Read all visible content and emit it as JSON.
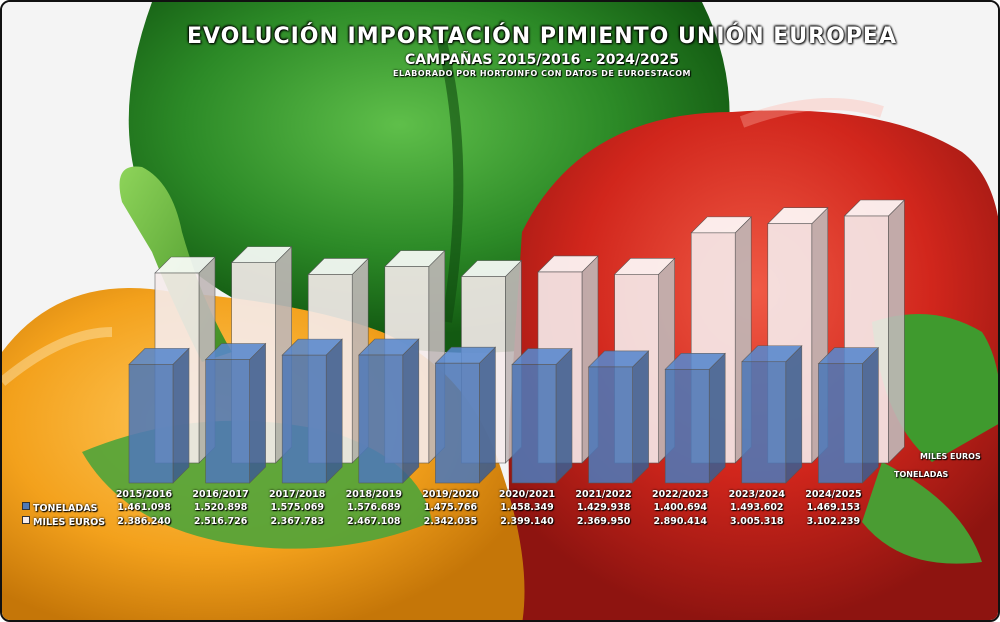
{
  "title": "EVOLUCIÓN IMPORTACIÓN PIMIENTO UNIÓN EUROPEA",
  "subtitle": "CAMPAÑAS 2015/2016 - 2024/2025",
  "source": "ELABORADO POR HORTOINFO CON DATOS DE EUROESTACOM",
  "colors": {
    "toneladas": "#4f79b8",
    "miles_euros": "#f6ecec"
  },
  "chart_data": {
    "type": "bar",
    "categories": [
      "2015/2016",
      "2016/2017",
      "2017/2018",
      "2018/2019",
      "2019/2020",
      "2020/2021",
      "2021/2022",
      "2022/2023",
      "2023/2024",
      "2024/2025"
    ],
    "series": [
      {
        "name": "TONELADAS",
        "values": [
          1461098,
          1520898,
          1575069,
          1576689,
          1475766,
          1458349,
          1429938,
          1400694,
          1493602,
          1469153
        ],
        "labels": [
          "1.461.098",
          "1.520.898",
          "1.575.069",
          "1.576.689",
          "1.475.766",
          "1.458.349",
          "1.429.938",
          "1.400.694",
          "1.493.602",
          "1.469.153"
        ]
      },
      {
        "name": "MILES EUROS",
        "values": [
          2386240,
          2516726,
          2367783,
          2467108,
          2342035,
          2399140,
          2369950,
          2890414,
          3005318,
          3102239
        ],
        "labels": [
          "2.386.240",
          "2.516.726",
          "2.367.783",
          "2.467.108",
          "2.342.035",
          "2.399.140",
          "2.369.950",
          "2.890.414",
          "3.005.318",
          "3.102.239"
        ]
      }
    ],
    "depth_label_back": "MILES EUROS",
    "depth_label_front": "TONELADAS"
  }
}
